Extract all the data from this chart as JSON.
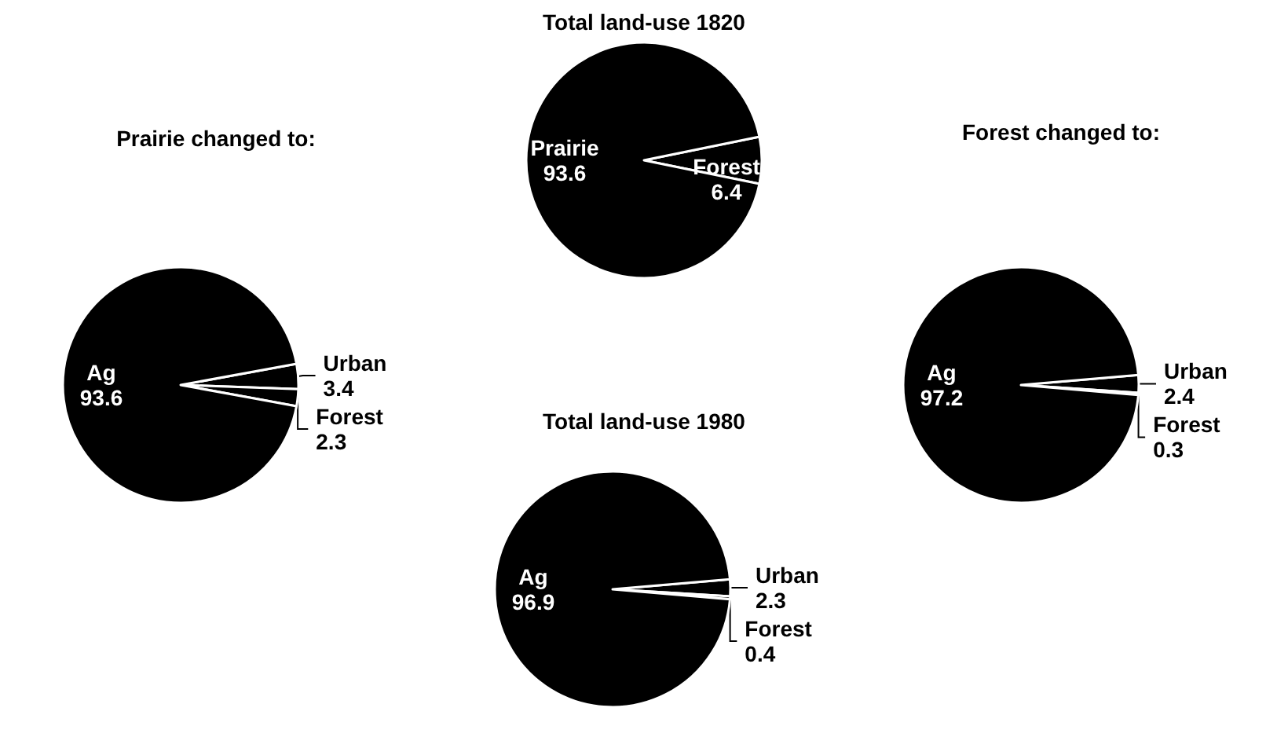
{
  "chart_data": [
    {
      "type": "pie",
      "title": "Prairie changed to:",
      "categories": [
        "Urban",
        "Forest",
        "Ag"
      ],
      "values": [
        3.4,
        2.3,
        93.6
      ],
      "colors": [
        "#000000",
        "#000000",
        "#000000"
      ],
      "data_labels": true,
      "legend": false
    },
    {
      "type": "pie",
      "title": "Total land-use 1820",
      "categories": [
        "Forest",
        "Prairie"
      ],
      "values": [
        6.4,
        93.6
      ],
      "colors": [
        "#000000",
        "#000000"
      ],
      "data_labels": true,
      "legend": false
    },
    {
      "type": "pie",
      "title": "Forest changed to:",
      "categories": [
        "Urban",
        "Forest",
        "Ag"
      ],
      "values": [
        2.4,
        0.3,
        97.2
      ],
      "colors": [
        "#000000",
        "#000000",
        "#000000"
      ],
      "data_labels": true,
      "legend": false
    },
    {
      "type": "pie",
      "title": "Total land-use 1980",
      "categories": [
        "Urban",
        "Forest",
        "Ag"
      ],
      "values": [
        2.3,
        0.4,
        96.9
      ],
      "colors": [
        "#000000",
        "#000000",
        "#000000"
      ],
      "data_labels": true,
      "legend": false
    }
  ]
}
